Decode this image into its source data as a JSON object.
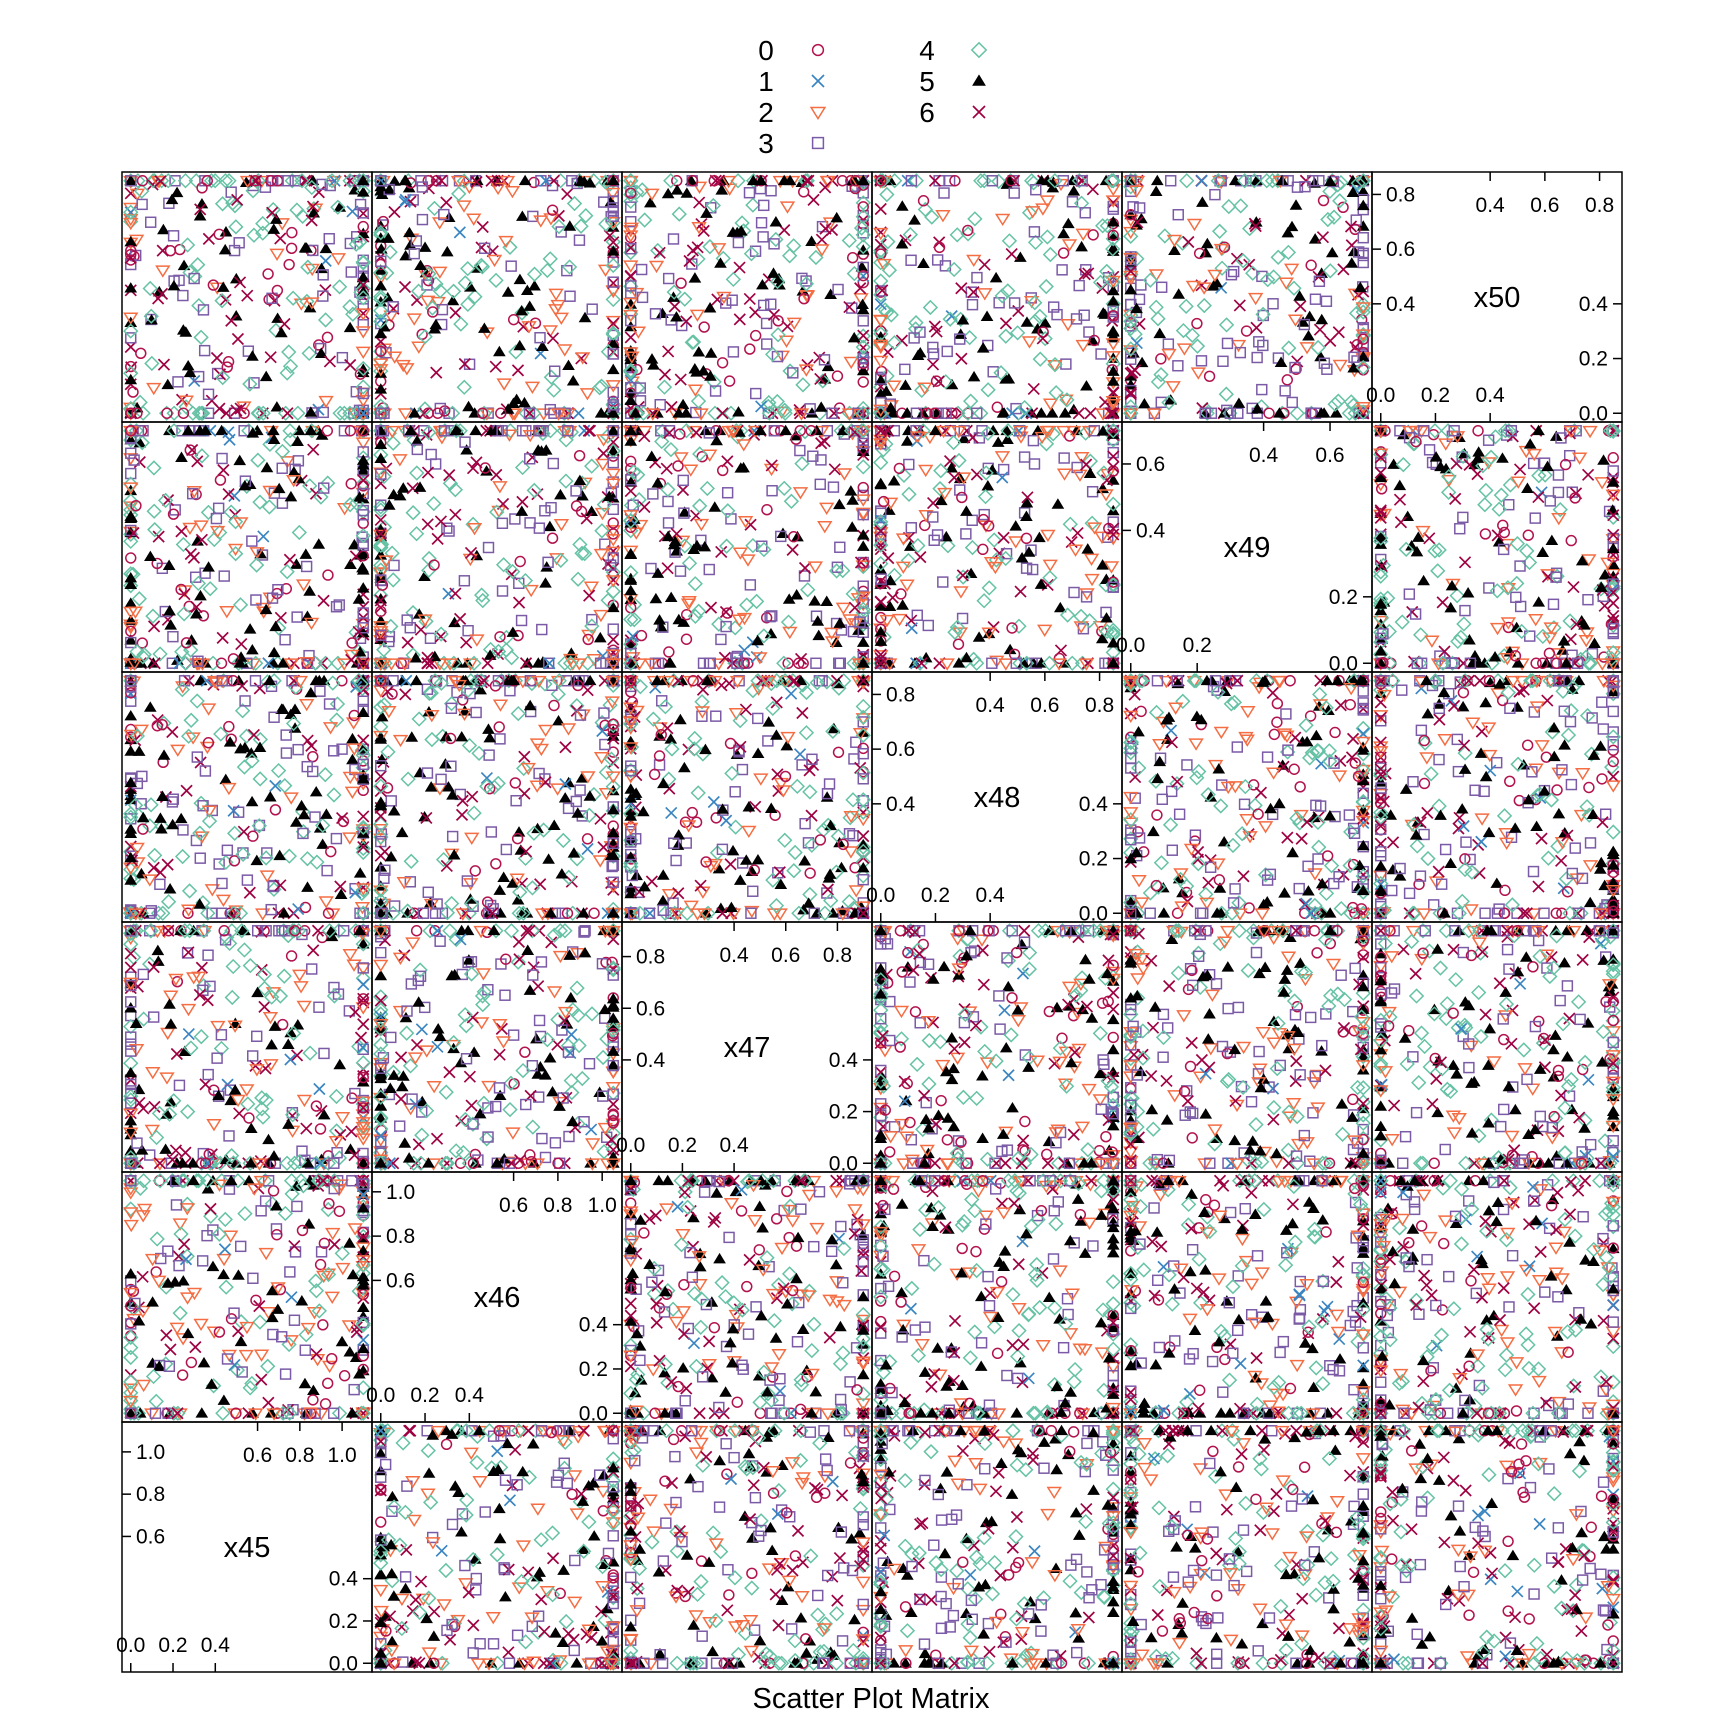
{
  "chart_data": {
    "type": "scatter",
    "subtype": "scatter-plot-matrix",
    "xlabel": "Scatter Plot Matrix",
    "variables": [
      "x45",
      "x46",
      "x47",
      "x48",
      "x49",
      "x50"
    ],
    "diagonal_ticks": {
      "x45": {
        "low": [
          "0.0",
          "0.2",
          "0.4"
        ],
        "high": [
          "0.6",
          "0.8",
          "1.0"
        ]
      },
      "x46": {
        "low": [
          "0.0",
          "0.2",
          "0.4"
        ],
        "high": [
          "0.6",
          "0.8",
          "1.0"
        ]
      },
      "x47": {
        "low": [
          "0.0",
          "0.2",
          "0.4"
        ],
        "high": [
          "0.4",
          "0.6",
          "0.8"
        ]
      },
      "x48": {
        "low": [
          "0.0",
          "0.2",
          "0.4"
        ],
        "high": [
          "0.4",
          "0.6",
          "0.8"
        ]
      },
      "x49": {
        "low": [
          "0.0",
          "0.2"
        ],
        "high": [
          "0.4",
          "0.6"
        ]
      },
      "x50": {
        "low": [
          "0.0",
          "0.2",
          "0.4"
        ],
        "high": [
          "0.4",
          "0.6",
          "0.8"
        ]
      }
    },
    "ranges": {
      "x45": [
        0,
        1.1
      ],
      "x46": [
        0,
        1.05
      ],
      "x47": [
        0,
        0.9
      ],
      "x48": [
        0,
        0.85
      ],
      "x49": [
        0,
        0.7
      ],
      "x50": [
        0,
        0.85
      ]
    },
    "legend": {
      "position": "top",
      "groups": [
        {
          "label": "0",
          "symbol": "circle",
          "color": "#b2124d"
        },
        {
          "label": "1",
          "symbol": "cross",
          "color": "#3a85c1"
        },
        {
          "label": "2",
          "symbol": "triangle-down",
          "color": "#f46d43"
        },
        {
          "label": "3",
          "symbol": "square",
          "color": "#7b5aa6"
        },
        {
          "label": "4",
          "symbol": "diamond",
          "color": "#66c2a5"
        },
        {
          "label": "5",
          "symbol": "triangle-up",
          "color": "#000000"
        },
        {
          "label": "6",
          "symbol": "cross",
          "color": "#9e0142"
        }
      ]
    },
    "points_per_panel_estimate": 360,
    "note_on_values": "Each off-diagonal panel plots one variable against another; points are densely overplotted, concentrated along the panel borders (values near min and max) with a scattered interior."
  }
}
